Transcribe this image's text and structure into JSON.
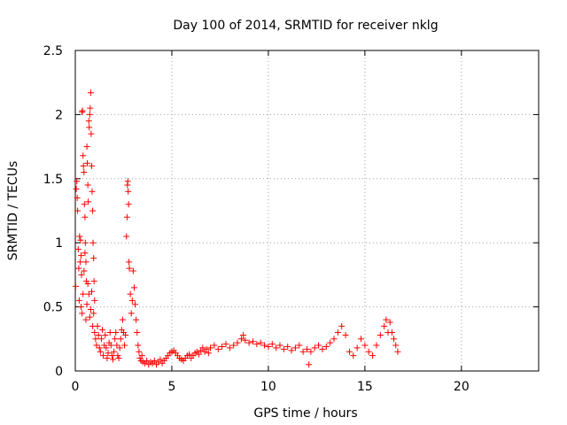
{
  "chart_data": {
    "type": "scatter",
    "title": "Day 100 of 2014, SRMTID for receiver nklg",
    "xlabel": "GPS time / hours",
    "ylabel": "SRMTID / TECUs",
    "xlim": [
      0,
      24
    ],
    "ylim": [
      0,
      2.5
    ],
    "x_ticks": [
      0,
      5,
      10,
      15,
      20
    ],
    "x_tick_labels": [
      "0",
      "5",
      "10",
      "15",
      "20"
    ],
    "y_ticks": [
      0,
      0.5,
      1,
      1.5,
      2,
      2.5
    ],
    "y_tick_labels": [
      "0",
      "0.5",
      "1",
      "1.5",
      "2",
      "2.5"
    ],
    "grid": true,
    "marker": "+",
    "series": [
      {
        "name": "SRMTID",
        "color": "#ff0000",
        "points": [
          [
            0.02,
            0.66
          ],
          [
            0.05,
            1.42
          ],
          [
            0.08,
            1.48
          ],
          [
            0.1,
            1.35
          ],
          [
            0.12,
            1.25
          ],
          [
            0.15,
            0.95
          ],
          [
            0.18,
            0.8
          ],
          [
            0.2,
            0.55
          ],
          [
            0.22,
            1.05
          ],
          [
            0.25,
            0.85
          ],
          [
            0.27,
            1.02
          ],
          [
            0.3,
            0.9
          ],
          [
            0.32,
            0.75
          ],
          [
            0.35,
            2.02
          ],
          [
            0.37,
            2.03
          ],
          [
            0.4,
            1.68
          ],
          [
            0.42,
            1.6
          ],
          [
            0.45,
            1.55
          ],
          [
            0.47,
            1.3
          ],
          [
            0.5,
            1.2
          ],
          [
            0.52,
            1.0
          ],
          [
            0.55,
            0.85
          ],
          [
            0.57,
            0.7
          ],
          [
            0.6,
            1.75
          ],
          [
            0.62,
            1.62
          ],
          [
            0.65,
            1.45
          ],
          [
            0.67,
            1.32
          ],
          [
            0.7,
            1.95
          ],
          [
            0.72,
            1.9
          ],
          [
            0.75,
            2.0
          ],
          [
            0.77,
            2.05
          ],
          [
            0.8,
            2.17
          ],
          [
            0.82,
            1.85
          ],
          [
            0.85,
            1.6
          ],
          [
            0.87,
            1.4
          ],
          [
            0.9,
            1.25
          ],
          [
            0.92,
            1.0
          ],
          [
            0.95,
            0.88
          ],
          [
            0.97,
            0.7
          ],
          [
            1.0,
            0.55
          ],
          [
            0.3,
            0.5
          ],
          [
            0.35,
            0.45
          ],
          [
            0.4,
            0.6
          ],
          [
            0.45,
            0.78
          ],
          [
            0.5,
            0.92
          ],
          [
            0.55,
            0.4
          ],
          [
            0.6,
            0.52
          ],
          [
            0.65,
            0.68
          ],
          [
            0.7,
            0.6
          ],
          [
            0.75,
            0.42
          ],
          [
            0.8,
            0.48
          ],
          [
            0.85,
            0.62
          ],
          [
            0.9,
            0.35
          ],
          [
            0.95,
            0.45
          ],
          [
            1.0,
            0.3
          ],
          [
            1.05,
            0.25
          ],
          [
            1.1,
            0.2
          ],
          [
            1.15,
            0.35
          ],
          [
            1.2,
            0.28
          ],
          [
            1.25,
            0.18
          ],
          [
            1.3,
            0.15
          ],
          [
            1.35,
            0.25
          ],
          [
            1.4,
            0.32
          ],
          [
            1.45,
            0.12
          ],
          [
            1.5,
            0.2
          ],
          [
            1.55,
            0.28
          ],
          [
            1.6,
            0.18
          ],
          [
            1.65,
            0.1
          ],
          [
            1.7,
            0.14
          ],
          [
            1.75,
            0.22
          ],
          [
            1.8,
            0.3
          ],
          [
            1.85,
            0.2
          ],
          [
            1.9,
            0.12
          ],
          [
            1.95,
            0.09
          ],
          [
            2.0,
            0.15
          ],
          [
            2.05,
            0.25
          ],
          [
            2.1,
            0.3
          ],
          [
            2.15,
            0.2
          ],
          [
            2.2,
            0.12
          ],
          [
            2.25,
            0.1
          ],
          [
            2.3,
            0.18
          ],
          [
            2.35,
            0.25
          ],
          [
            2.4,
            0.32
          ],
          [
            2.45,
            0.4
          ],
          [
            2.5,
            0.3
          ],
          [
            2.55,
            0.2
          ],
          [
            2.6,
            0.28
          ],
          [
            2.65,
            1.05
          ],
          [
            2.68,
            1.2
          ],
          [
            2.7,
            1.45
          ],
          [
            2.72,
            1.48
          ],
          [
            2.74,
            1.4
          ],
          [
            2.76,
            1.3
          ],
          [
            2.78,
            0.85
          ],
          [
            2.8,
            0.8
          ],
          [
            2.85,
            0.6
          ],
          [
            2.9,
            0.45
          ],
          [
            2.95,
            0.55
          ],
          [
            3.0,
            0.78
          ],
          [
            3.05,
            0.65
          ],
          [
            3.1,
            0.52
          ],
          [
            3.15,
            0.4
          ],
          [
            3.2,
            0.3
          ],
          [
            3.25,
            0.2
          ],
          [
            3.3,
            0.15
          ],
          [
            3.35,
            0.1
          ],
          [
            3.4,
            0.08
          ],
          [
            3.45,
            0.12
          ],
          [
            3.5,
            0.07
          ],
          [
            3.6,
            0.06
          ],
          [
            3.7,
            0.08
          ],
          [
            3.8,
            0.05
          ],
          [
            3.9,
            0.07
          ],
          [
            4.0,
            0.06
          ],
          [
            4.1,
            0.08
          ],
          [
            4.2,
            0.05
          ],
          [
            4.3,
            0.07
          ],
          [
            4.4,
            0.09
          ],
          [
            4.5,
            0.06
          ],
          [
            4.6,
            0.08
          ],
          [
            4.7,
            0.1
          ],
          [
            4.8,
            0.12
          ],
          [
            4.9,
            0.14
          ],
          [
            5.0,
            0.15
          ],
          [
            5.1,
            0.16
          ],
          [
            5.2,
            0.14
          ],
          [
            5.3,
            0.12
          ],
          [
            5.4,
            0.1
          ],
          [
            5.5,
            0.09
          ],
          [
            5.6,
            0.08
          ],
          [
            5.7,
            0.1
          ],
          [
            5.8,
            0.12
          ],
          [
            5.9,
            0.13
          ],
          [
            6.0,
            0.1
          ],
          [
            6.1,
            0.12
          ],
          [
            6.2,
            0.14
          ],
          [
            6.3,
            0.15
          ],
          [
            6.4,
            0.13
          ],
          [
            6.5,
            0.16
          ],
          [
            6.6,
            0.18
          ],
          [
            6.7,
            0.15
          ],
          [
            6.8,
            0.17
          ],
          [
            6.9,
            0.14
          ],
          [
            7.0,
            0.18
          ],
          [
            7.2,
            0.2
          ],
          [
            7.4,
            0.17
          ],
          [
            7.6,
            0.19
          ],
          [
            7.8,
            0.21
          ],
          [
            8.0,
            0.18
          ],
          [
            8.2,
            0.2
          ],
          [
            8.4,
            0.22
          ],
          [
            8.6,
            0.25
          ],
          [
            8.7,
            0.28
          ],
          [
            8.8,
            0.24
          ],
          [
            9.0,
            0.22
          ],
          [
            9.2,
            0.23
          ],
          [
            9.4,
            0.21
          ],
          [
            9.6,
            0.22
          ],
          [
            9.8,
            0.2
          ],
          [
            10.0,
            0.19
          ],
          [
            10.2,
            0.21
          ],
          [
            10.4,
            0.18
          ],
          [
            10.6,
            0.2
          ],
          [
            10.8,
            0.17
          ],
          [
            11.0,
            0.19
          ],
          [
            11.2,
            0.16
          ],
          [
            11.4,
            0.18
          ],
          [
            11.6,
            0.2
          ],
          [
            11.8,
            0.15
          ],
          [
            12.0,
            0.17
          ],
          [
            12.1,
            0.05
          ],
          [
            12.2,
            0.15
          ],
          [
            12.4,
            0.18
          ],
          [
            12.6,
            0.2
          ],
          [
            12.8,
            0.17
          ],
          [
            13.0,
            0.19
          ],
          [
            13.2,
            0.22
          ],
          [
            13.4,
            0.25
          ],
          [
            13.6,
            0.3
          ],
          [
            13.8,
            0.35
          ],
          [
            14.0,
            0.28
          ],
          [
            14.2,
            0.15
          ],
          [
            14.4,
            0.12
          ],
          [
            14.6,
            0.18
          ],
          [
            14.8,
            0.25
          ],
          [
            15.0,
            0.2
          ],
          [
            15.2,
            0.15
          ],
          [
            15.4,
            0.12
          ],
          [
            15.6,
            0.2
          ],
          [
            15.8,
            0.28
          ],
          [
            16.0,
            0.35
          ],
          [
            16.1,
            0.4
          ],
          [
            16.2,
            0.3
          ],
          [
            16.3,
            0.38
          ],
          [
            16.4,
            0.3
          ],
          [
            16.5,
            0.25
          ],
          [
            16.6,
            0.2
          ],
          [
            16.7,
            0.15
          ]
        ]
      }
    ]
  }
}
